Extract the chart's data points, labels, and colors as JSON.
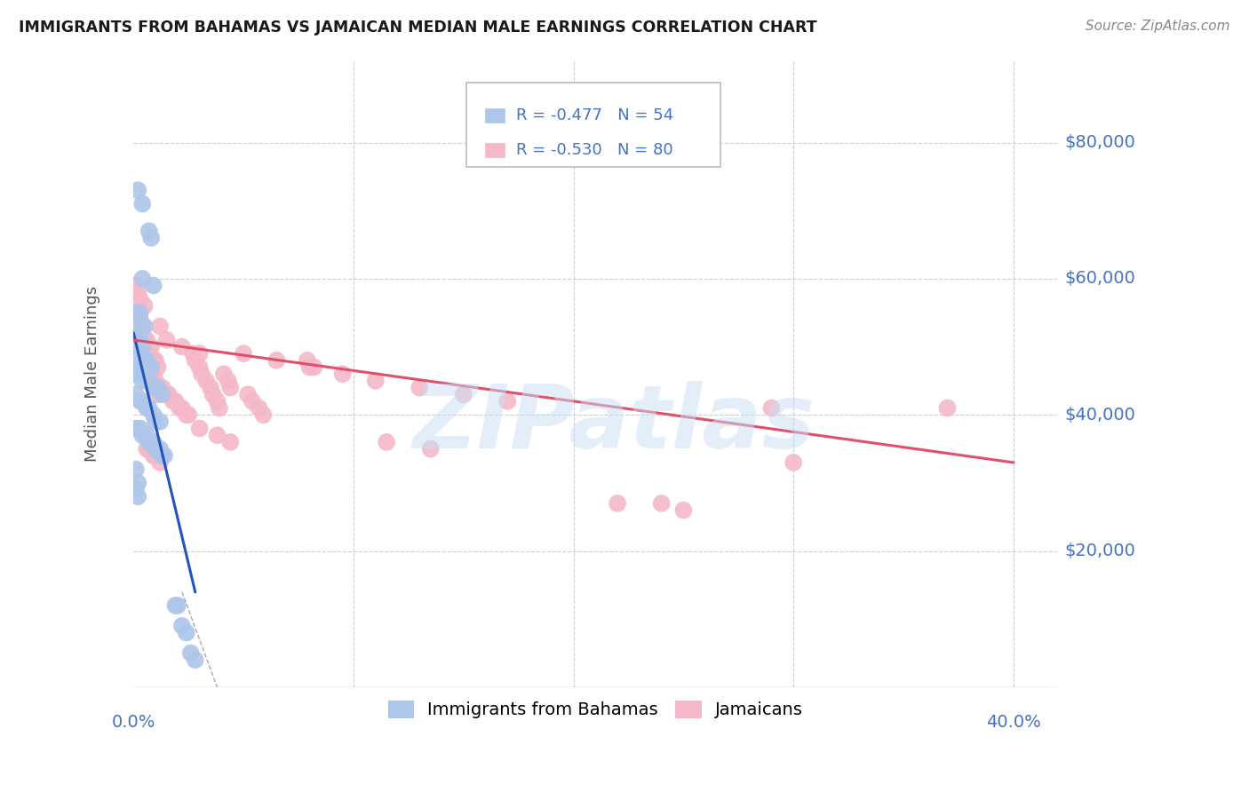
{
  "title": "IMMIGRANTS FROM BAHAMAS VS JAMAICAN MEDIAN MALE EARNINGS CORRELATION CHART",
  "source": "Source: ZipAtlas.com",
  "ylabel": "Median Male Earnings",
  "y_ticks": [
    20000,
    40000,
    60000,
    80000
  ],
  "y_tick_labels": [
    "$20,000",
    "$40,000",
    "$60,000",
    "$80,000"
  ],
  "xlim": [
    0.0,
    0.42
  ],
  "ylim": [
    0,
    92000
  ],
  "title_color": "#1a1a1a",
  "source_color": "#888888",
  "ylabel_color": "#555555",
  "ytick_color": "#4472c4",
  "xtick_color": "#4472c4",
  "legend_r1_text": "R = -0.477",
  "legend_n1_text": "N = 54",
  "legend_r2_text": "R = -0.530",
  "legend_n2_text": "N = 80",
  "bahamas_color": "#aec6ea",
  "jamaican_color": "#f5b8c8",
  "bahamas_line_color": "#2255bb",
  "jamaican_line_color": "#e0506a",
  "legend_text_color": "#4472c4",
  "watermark": "ZIPatlas",
  "bahamas_scatter_x": [
    0.002,
    0.004,
    0.007,
    0.008,
    0.004,
    0.009,
    0.001,
    0.003,
    0.001,
    0.005,
    0.001,
    0.003,
    0.004,
    0.001,
    0.003,
    0.006,
    0.005,
    0.008,
    0.001,
    0.001,
    0.003,
    0.004,
    0.007,
    0.009,
    0.011,
    0.013,
    0.001,
    0.003,
    0.004,
    0.006,
    0.007,
    0.009,
    0.01,
    0.012,
    0.001,
    0.003,
    0.004,
    0.006,
    0.007,
    0.009,
    0.01,
    0.012,
    0.014,
    0.013,
    0.019,
    0.02,
    0.022,
    0.024,
    0.026,
    0.028,
    0.001,
    0.002,
    0.001,
    0.002
  ],
  "bahamas_scatter_y": [
    73000,
    71000,
    67000,
    66000,
    60000,
    59000,
    55000,
    55000,
    54000,
    53000,
    52000,
    51000,
    50000,
    50000,
    49000,
    48000,
    48000,
    47000,
    47000,
    46000,
    46000,
    45000,
    45000,
    44000,
    44000,
    43000,
    43000,
    42000,
    42000,
    41000,
    41000,
    40000,
    39000,
    39000,
    38000,
    38000,
    37000,
    37000,
    36000,
    36000,
    35000,
    35000,
    34000,
    34000,
    12000,
    12000,
    9000,
    8000,
    5000,
    4000,
    32000,
    30000,
    29000,
    28000
  ],
  "jamaican_scatter_x": [
    0.001,
    0.003,
    0.004,
    0.003,
    0.005,
    0.006,
    0.008,
    0.004,
    0.006,
    0.007,
    0.009,
    0.01,
    0.011,
    0.004,
    0.006,
    0.007,
    0.009,
    0.01,
    0.011,
    0.013,
    0.015,
    0.016,
    0.018,
    0.019,
    0.021,
    0.022,
    0.024,
    0.025,
    0.027,
    0.028,
    0.03,
    0.031,
    0.033,
    0.035,
    0.036,
    0.038,
    0.039,
    0.041,
    0.043,
    0.044,
    0.052,
    0.054,
    0.057,
    0.059,
    0.079,
    0.082,
    0.006,
    0.007,
    0.009,
    0.01,
    0.012,
    0.29,
    0.37,
    0.003,
    0.005,
    0.012,
    0.015,
    0.022,
    0.03,
    0.03,
    0.038,
    0.044,
    0.22,
    0.24,
    0.25,
    0.115,
    0.3,
    0.135,
    0.001,
    0.002,
    0.009,
    0.011,
    0.05,
    0.065,
    0.08,
    0.095,
    0.11,
    0.13,
    0.15,
    0.17
  ],
  "jamaican_scatter_y": [
    55000,
    54000,
    53000,
    52000,
    51000,
    51000,
    50000,
    50000,
    49000,
    49000,
    48000,
    48000,
    47000,
    47000,
    46000,
    46000,
    45000,
    45000,
    44000,
    44000,
    43000,
    43000,
    42000,
    42000,
    41000,
    41000,
    40000,
    40000,
    49000,
    48000,
    47000,
    46000,
    45000,
    44000,
    43000,
    42000,
    41000,
    46000,
    45000,
    44000,
    43000,
    42000,
    41000,
    40000,
    48000,
    47000,
    35000,
    35000,
    34000,
    34000,
    33000,
    41000,
    41000,
    57000,
    56000,
    53000,
    51000,
    50000,
    49000,
    38000,
    37000,
    36000,
    27000,
    27000,
    26000,
    36000,
    33000,
    35000,
    59000,
    58000,
    46000,
    43000,
    49000,
    48000,
    47000,
    46000,
    45000,
    44000,
    43000,
    42000
  ],
  "bahamas_trendline_x": [
    0.0,
    0.028
  ],
  "bahamas_trendline_y": [
    52000,
    14000
  ],
  "jamaican_trendline_x": [
    0.0,
    0.4
  ],
  "jamaican_trendline_y": [
    51000,
    33000
  ],
  "dashed_line_x": [
    0.022,
    0.038
  ],
  "dashed_line_y": [
    14000,
    0
  ],
  "background_color": "#ffffff",
  "grid_color": "#cccccc"
}
